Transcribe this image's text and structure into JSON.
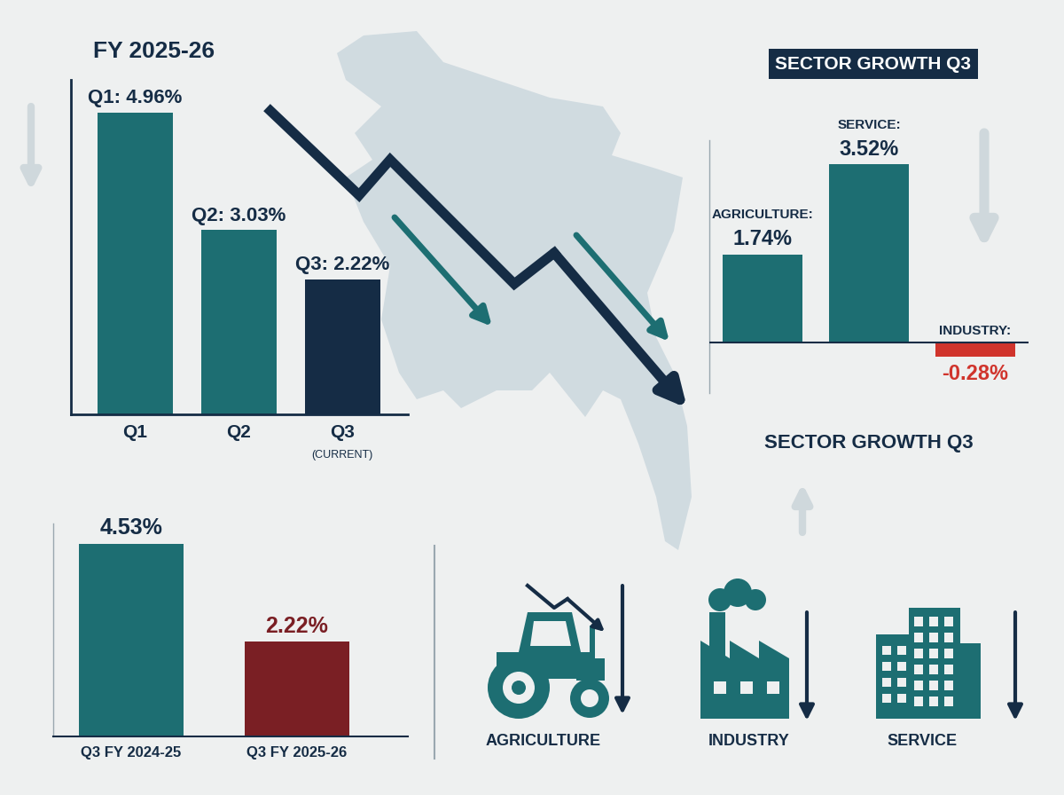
{
  "chart_data": [
    {
      "type": "bar",
      "title": "FY 2025-26",
      "categories": [
        "Q1",
        "Q2",
        "Q3"
      ],
      "values": [
        4.96,
        3.03,
        2.22
      ],
      "value_labels": [
        "Q1: 4.96%",
        "Q2: 3.03%",
        "Q3: 2.22%"
      ],
      "data_labels": true,
      "colors": [
        "#1d6e72",
        "#1d6e72",
        "#152c45"
      ],
      "annotations": [
        {
          "category": "Q3",
          "text": "(CURRENT)"
        }
      ],
      "ylim": [
        0,
        5.5
      ],
      "tick_labels": "x",
      "grid": false
    },
    {
      "type": "bar",
      "title": "SECTOR GROWTH Q3",
      "categories": [
        "AGRICULTURE:",
        "SERVICE:",
        "INDUSTRY:"
      ],
      "values": [
        1.74,
        3.52,
        -0.28
      ],
      "value_labels": [
        "1.74%",
        "3.52%",
        "-0.28%"
      ],
      "data_labels": true,
      "colors": [
        "#1d6e72",
        "#1d6e72",
        "#d0342c"
      ],
      "ylim": [
        -1,
        4
      ],
      "tick_labels": false,
      "grid": false
    },
    {
      "type": "bar",
      "categories": [
        "Q3 FY 2024-25",
        "Q3 FY 2025-26"
      ],
      "values": [
        4.53,
        2.22
      ],
      "value_labels": [
        "4.53%",
        "2.22%"
      ],
      "data_labels": true,
      "colors": [
        "#1d6e72",
        "#7a1f24"
      ],
      "ylim": [
        0,
        5
      ],
      "tick_labels": "x",
      "grid": false
    }
  ],
  "captions": {
    "heading": "SECTOR GROWTH Q3",
    "icon_labels": [
      "AGRICULTURE",
      "INDUSTRY",
      "SERVICE"
    ]
  }
}
